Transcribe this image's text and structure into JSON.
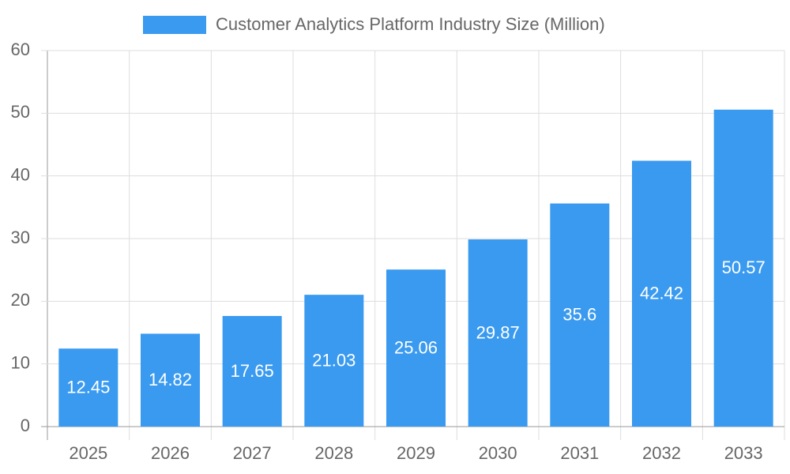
{
  "chart_data": {
    "type": "bar",
    "categories": [
      "2025",
      "2026",
      "2027",
      "2028",
      "2029",
      "2030",
      "2031",
      "2032",
      "2033"
    ],
    "series": [
      {
        "name": "Customer Analytics Platform Industry Size (Million)",
        "color": "#399af0",
        "values": [
          12.45,
          14.82,
          17.65,
          21.03,
          25.06,
          29.87,
          35.6,
          42.42,
          50.57
        ]
      }
    ],
    "ylim": [
      0,
      60
    ],
    "yticks": [
      0,
      10,
      20,
      30,
      40,
      50,
      60
    ],
    "grid": true,
    "legend": "top"
  }
}
